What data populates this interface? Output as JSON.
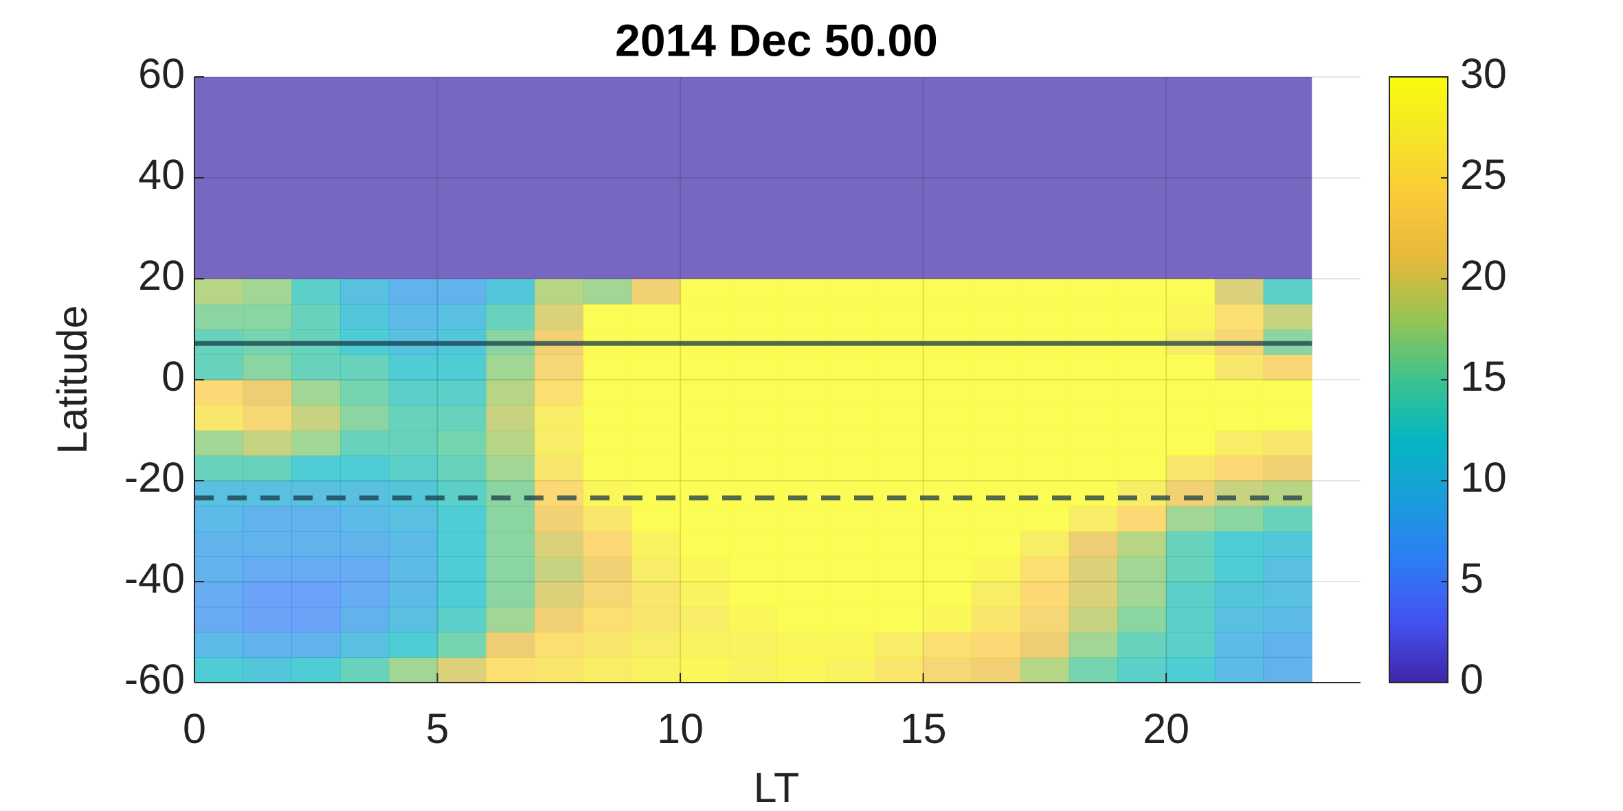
{
  "chart_data": {
    "type": "heatmap",
    "title": "2014 Dec    50.00",
    "xlabel": "LT",
    "ylabel": "Latitude",
    "x_edges": [
      0,
      1,
      2,
      3,
      4,
      5,
      6,
      7,
      8,
      9,
      10,
      11,
      12,
      13,
      14,
      15,
      16,
      17,
      18,
      19,
      20,
      21,
      22,
      23
    ],
    "y_edges": [
      -60,
      -55,
      -50,
      -45,
      -40,
      -35,
      -30,
      -25,
      -20,
      -15,
      -10,
      -5,
      0,
      5,
      10,
      15,
      20
    ],
    "z": [
      [
        12,
        11,
        12,
        14,
        17,
        20,
        25,
        26,
        27,
        28,
        29,
        28,
        29,
        28,
        26,
        23,
        22,
        18,
        15,
        13,
        12,
        9,
        8
      ],
      [
        9,
        8,
        8,
        10,
        12,
        15,
        21,
        25,
        26,
        27,
        28,
        28,
        29,
        29,
        27,
        25,
        24,
        21,
        17,
        14,
        13,
        9,
        8
      ],
      [
        7,
        6,
        6,
        8,
        10,
        13,
        17,
        22,
        25,
        26,
        27,
        29,
        30,
        30,
        30,
        29,
        26,
        23,
        19,
        16,
        13,
        10,
        9
      ],
      [
        7,
        6,
        6,
        7,
        9,
        12,
        16,
        20,
        23,
        26,
        28,
        30,
        30,
        30,
        30,
        30,
        27,
        24,
        20,
        17,
        13,
        11,
        10
      ],
      [
        8,
        7,
        7,
        7,
        9,
        12,
        16,
        19,
        22,
        27,
        29,
        30,
        30,
        30,
        30,
        30,
        29,
        25,
        20,
        17,
        14,
        12,
        10
      ],
      [
        8,
        8,
        8,
        8,
        9,
        12,
        16,
        20,
        24,
        28,
        30,
        30,
        30,
        30,
        30,
        30,
        30,
        27,
        21,
        18,
        14,
        12,
        11
      ],
      [
        9,
        8,
        8,
        9,
        10,
        12,
        16,
        22,
        26,
        30,
        30,
        30,
        30,
        30,
        30,
        30,
        30,
        30,
        27,
        24,
        17,
        16,
        14
      ],
      [
        10,
        10,
        10,
        10,
        11,
        13,
        16,
        24,
        29,
        30,
        30,
        30,
        30,
        30,
        30,
        30,
        30,
        30,
        30,
        27,
        22,
        19,
        18
      ],
      [
        14,
        14,
        12,
        12,
        13,
        14,
        17,
        26,
        30,
        30,
        30,
        30,
        30,
        30,
        30,
        30,
        30,
        30,
        30,
        30,
        26,
        24,
        22
      ],
      [
        17,
        19,
        17,
        14,
        14,
        15,
        18,
        27,
        30,
        30,
        30,
        30,
        30,
        30,
        30,
        30,
        30,
        30,
        30,
        30,
        30,
        27,
        26
      ],
      [
        26,
        23,
        19,
        16,
        14,
        14,
        19,
        27,
        30,
        30,
        30,
        30,
        30,
        30,
        30,
        30,
        30,
        30,
        30,
        30,
        30,
        30,
        30
      ],
      [
        24,
        21,
        17,
        15,
        13,
        13,
        18,
        25,
        30,
        30,
        30,
        30,
        30,
        30,
        30,
        30,
        30,
        30,
        30,
        30,
        30,
        30,
        30
      ],
      [
        14,
        16,
        14,
        14,
        12,
        12,
        17,
        23,
        30,
        30,
        30,
        30,
        30,
        30,
        30,
        30,
        30,
        30,
        30,
        30,
        30,
        26,
        23
      ],
      [
        14,
        15,
        14,
        12,
        10,
        11,
        16,
        22,
        30,
        30,
        30,
        30,
        30,
        30,
        30,
        30,
        30,
        30,
        30,
        30,
        27,
        23,
        16
      ],
      [
        16,
        16,
        14,
        11,
        9,
        10,
        14,
        20,
        30,
        30,
        30,
        30,
        30,
        30,
        30,
        30,
        30,
        30,
        30,
        30,
        29,
        25,
        19
      ],
      [
        18,
        17,
        13,
        10,
        8,
        8,
        11,
        18,
        17,
        22,
        30,
        30,
        30,
        30,
        30,
        30,
        30,
        30,
        30,
        30,
        30,
        20,
        13
      ]
    ],
    "cell_opacity": 0.7,
    "mask": {
      "y": [
        20,
        60
      ],
      "color": "#7767c0"
    },
    "hlines": [
      {
        "y": 7.2,
        "style": "solid"
      },
      {
        "y": -23.4,
        "style": "dashed"
      }
    ],
    "xlim": [
      0,
      24
    ],
    "xticks": [
      0,
      5,
      10,
      15,
      20
    ],
    "ylim": [
      -60,
      60
    ],
    "yticks": [
      -60,
      -40,
      -20,
      0,
      20,
      40,
      60
    ],
    "clim": [
      0,
      30
    ],
    "cticks": [
      0,
      5,
      10,
      15,
      20,
      25,
      30
    ],
    "colormap": [
      "#3e26a8",
      "#4352f0",
      "#2d7cf5",
      "#1a9ddc",
      "#05b6c2",
      "#3cc38f",
      "#97c453",
      "#e5b93a",
      "#fbc93a",
      "#f5e526",
      "#f9fb0e"
    ],
    "grid": true
  }
}
